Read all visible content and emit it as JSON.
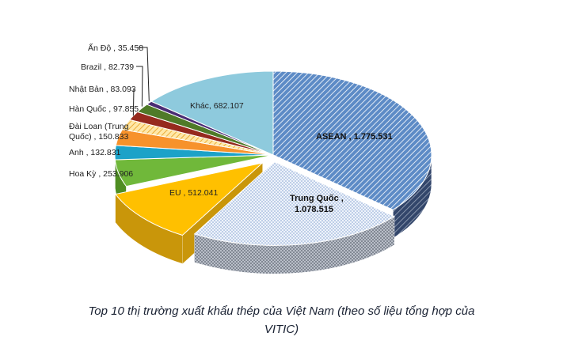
{
  "chart_data": {
    "type": "pie",
    "title": "",
    "series": [
      {
        "label": "ASEAN",
        "value_text": "1.775.531",
        "value": 1775531,
        "color": "#4f7db8"
      },
      {
        "label": "Trung Quốc",
        "value_text": "1.078.515",
        "value": 1078515,
        "color": "#c9d7ee"
      },
      {
        "label": "EU",
        "value_text": "512.041",
        "value": 512041,
        "color": "#ffc000"
      },
      {
        "label": "Hoa Kỳ",
        "value_text": "253.906",
        "value": 253906,
        "color": "#70b83a"
      },
      {
        "label": "Anh",
        "value_text": "132.831",
        "value": 132831,
        "color": "#1ca2c8"
      },
      {
        "label": "Đài Loan (Trung Quốc)",
        "value_text": "150.833",
        "value": 150833,
        "color": "#f7922b"
      },
      {
        "label": "Hàn Quốc",
        "value_text": "97.855",
        "value": 97855,
        "color": "#f8d77a"
      },
      {
        "label": "Nhật Bản",
        "value_text": "83.093",
        "value": 83093,
        "color": "#962a1e"
      },
      {
        "label": "Brazil",
        "value_text": "82.739",
        "value": 82739,
        "color": "#4f7a28"
      },
      {
        "label": "Ấn Độ",
        "value_text": "35.458",
        "value": 35458,
        "color": "#4a2c74"
      },
      {
        "label": "Khác",
        "value_text": "682.107",
        "value": 682107,
        "color": "#8ecadd"
      }
    ],
    "data_labels": {
      "asean_line": "ASEAN , 1.775.531",
      "trungquoc_line1": "Trung Quốc ,",
      "trungquoc_line2": "1.078.515",
      "eu_line": "EU , 512.041",
      "hoaky_line": "Hoa Kỳ , 253.906",
      "anh_line": "Anh , 132.831",
      "dailoan_line1": "Đài Loan (Trung",
      "dailoan_line2": "Quốc) , 150.833",
      "hanquoc_line": "Hàn Quốc , 97.855",
      "nhatban_line": "Nhật Bản , 83.093",
      "brazil_line": "Brazil , 82.739",
      "ando_line": "Ấn Độ , 35.458",
      "khac_line": "Khác, 682.107"
    },
    "style": "3d-exploded-pie"
  },
  "caption": {
    "line1": "Top 10 thị trường xuất khẩu thép của Việt Nam (theo số liệu tổng hợp của",
    "line2": "VITIC)"
  }
}
